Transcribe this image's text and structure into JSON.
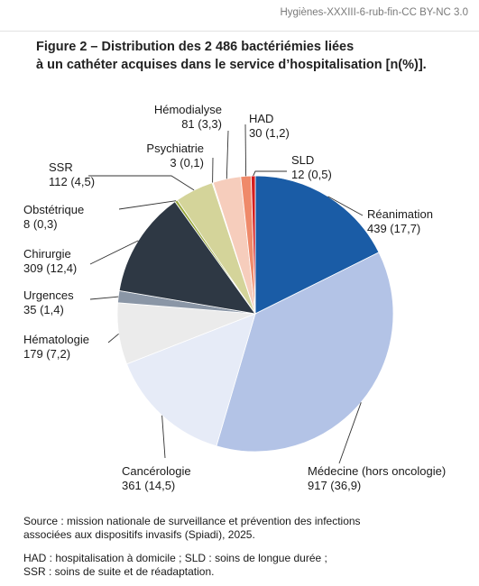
{
  "header": {
    "ref": "Hygiènes-XXXIII-6-rub-fin-CC BY-NC 3.0"
  },
  "figure": {
    "title_line1": "Figure 2 – Distribution des 2 486 bactériémies liées",
    "title_line2": "à un cathéter acquises dans le service d’hospitalisation [n(%)]."
  },
  "chart_data": {
    "type": "pie",
    "title": "Figure 2 – Distribution des 2 486 bactériémies liées à un cathéter acquises dans le service d’hospitalisation [n(%)].",
    "total": 2486,
    "slices": [
      {
        "name": "Réanimation",
        "value": 439,
        "percent": 17.7,
        "label": "439 (17,7)",
        "color": "#1a5ca6"
      },
      {
        "name": "Médecine (hors oncologie)",
        "value": 917,
        "percent": 36.9,
        "label": "917 (36,9)",
        "color": "#b3c3e6"
      },
      {
        "name": "Cancérologie",
        "value": 361,
        "percent": 14.5,
        "label": "361 (14,5)",
        "color": "#e6ebf7"
      },
      {
        "name": "Hématologie",
        "value": 179,
        "percent": 7.2,
        "label": "179 (7,2)",
        "color": "#ebebeb"
      },
      {
        "name": "Urgences",
        "value": 35,
        "percent": 1.4,
        "label": "35 (1,4)",
        "color": "#8a96a6"
      },
      {
        "name": "Chirurgie",
        "value": 309,
        "percent": 12.4,
        "label": "309 (12,4)",
        "color": "#2e3844"
      },
      {
        "name": "Obstétrique",
        "value": 8,
        "percent": 0.3,
        "label": "8 (0,3)",
        "color": "#9aa83c"
      },
      {
        "name": "SSR",
        "value": 112,
        "percent": 4.5,
        "label": "112 (4,5)",
        "color": "#d4d49a"
      },
      {
        "name": "Psychiatrie",
        "value": 3,
        "percent": 0.1,
        "label": "3 (0,1)",
        "color": "#f4ecd0"
      },
      {
        "name": "Hémodialyse",
        "value": 81,
        "percent": 3.3,
        "label": "81 (3,3)",
        "color": "#f6cdbc"
      },
      {
        "name": "HAD",
        "value": 30,
        "percent": 1.2,
        "label": "30 (1,2)",
        "color": "#ef8a6a"
      },
      {
        "name": "SLD",
        "value": 12,
        "percent": 0.5,
        "label": "12 (0,5)",
        "color": "#d41e1e"
      }
    ]
  },
  "footer": {
    "source_line1": "Source : mission nationale de surveillance et prévention des infections",
    "source_line2": "associées aux dispositifs invasifs (Spiadi), 2025.",
    "abbr_line1": "HAD : hospitalisation à domicile ; SLD : soins de longue durée ;",
    "abbr_line2": "SSR : soins de suite et de réadaptation."
  }
}
